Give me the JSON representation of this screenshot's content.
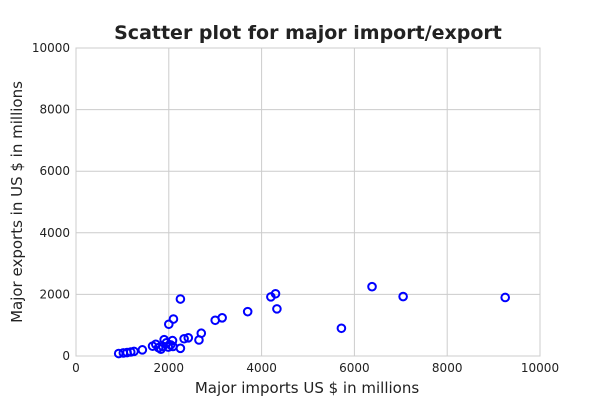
{
  "chart_data": {
    "type": "scatter",
    "title": "Scatter plot for major import/export",
    "xlabel": "Major imports US $ in millions",
    "ylabel": "Major exports in US $ in millions",
    "xlim": [
      0,
      10000
    ],
    "ylim": [
      0,
      10000
    ],
    "xticks": [
      0,
      2000,
      4000,
      6000,
      8000,
      10000
    ],
    "yticks": [
      0,
      2000,
      4000,
      6000,
      8000,
      10000
    ],
    "grid": true,
    "series": [
      {
        "color": "#0000ff",
        "marker": "hollow-circle",
        "points": [
          {
            "x": 920,
            "y": 80
          },
          {
            "x": 1020,
            "y": 100
          },
          {
            "x": 1100,
            "y": 110
          },
          {
            "x": 1180,
            "y": 130
          },
          {
            "x": 1250,
            "y": 150
          },
          {
            "x": 1430,
            "y": 200
          },
          {
            "x": 1650,
            "y": 320
          },
          {
            "x": 1720,
            "y": 380
          },
          {
            "x": 1780,
            "y": 270
          },
          {
            "x": 1830,
            "y": 220
          },
          {
            "x": 1870,
            "y": 310
          },
          {
            "x": 1900,
            "y": 530
          },
          {
            "x": 1950,
            "y": 430
          },
          {
            "x": 1990,
            "y": 290
          },
          {
            "x": 2000,
            "y": 1030
          },
          {
            "x": 2040,
            "y": 360
          },
          {
            "x": 2080,
            "y": 500
          },
          {
            "x": 2090,
            "y": 310
          },
          {
            "x": 2100,
            "y": 1200
          },
          {
            "x": 2250,
            "y": 250
          },
          {
            "x": 2250,
            "y": 1850
          },
          {
            "x": 2330,
            "y": 560
          },
          {
            "x": 2420,
            "y": 590
          },
          {
            "x": 2650,
            "y": 520
          },
          {
            "x": 2700,
            "y": 740
          },
          {
            "x": 3000,
            "y": 1160
          },
          {
            "x": 3150,
            "y": 1240
          },
          {
            "x": 3700,
            "y": 1440
          },
          {
            "x": 4200,
            "y": 1920
          },
          {
            "x": 4300,
            "y": 2020
          },
          {
            "x": 4330,
            "y": 1530
          },
          {
            "x": 5720,
            "y": 900
          },
          {
            "x": 6380,
            "y": 2250
          },
          {
            "x": 7050,
            "y": 1930
          },
          {
            "x": 9250,
            "y": 1900
          }
        ]
      }
    ]
  }
}
